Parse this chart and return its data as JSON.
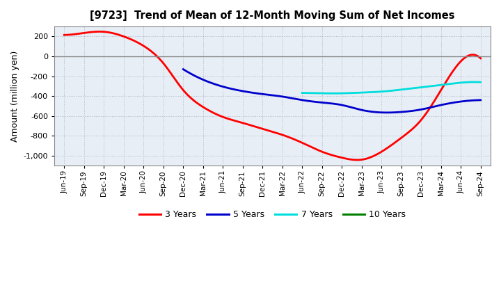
{
  "title": "[9723]  Trend of Mean of 12-Month Moving Sum of Net Incomes",
  "ylabel": "Amount (million yen)",
  "ylim": [
    -1100,
    300
  ],
  "yticks": [
    -1000,
    -800,
    -600,
    -400,
    -200,
    0,
    200
  ],
  "background_color": "#ffffff",
  "plot_bg_color": "#e8eef5",
  "grid_color": "#b0b8c8",
  "zero_line_color": "#888888",
  "x_labels": [
    "Jun-19",
    "Sep-19",
    "Dec-19",
    "Mar-20",
    "Jun-20",
    "Sep-20",
    "Dec-20",
    "Mar-21",
    "Jun-21",
    "Sep-21",
    "Dec-21",
    "Mar-22",
    "Jun-22",
    "Sep-22",
    "Dec-22",
    "Mar-23",
    "Jun-23",
    "Sep-23",
    "Dec-23",
    "Mar-24",
    "Jun-24",
    "Sep-24"
  ],
  "series": {
    "3years": {
      "color": "#ff0000",
      "label": "3 Years",
      "x": [
        0,
        1,
        2,
        3,
        4,
        5,
        6,
        7,
        8,
        9,
        10,
        11,
        12,
        13,
        14,
        15,
        16,
        17,
        18,
        19,
        20,
        21
      ],
      "y": [
        215,
        235,
        247,
        200,
        105,
        -70,
        -340,
        -510,
        -610,
        -670,
        -730,
        -790,
        -870,
        -960,
        -1020,
        -1040,
        -960,
        -820,
        -640,
        -340,
        -50,
        -20
      ]
    },
    "5years": {
      "color": "#0000cc",
      "label": "5 Years",
      "x": [
        6,
        7,
        8,
        9,
        10,
        11,
        12,
        13,
        14,
        15,
        16,
        17,
        18,
        19,
        20,
        21
      ],
      "y": [
        -130,
        -235,
        -305,
        -350,
        -380,
        -405,
        -440,
        -465,
        -490,
        -540,
        -565,
        -560,
        -535,
        -490,
        -455,
        -440
      ]
    },
    "7years": {
      "color": "#00dddd",
      "label": "7 Years",
      "x": [
        12,
        13,
        14,
        15,
        16,
        17,
        18,
        19,
        20,
        21
      ],
      "y": [
        -368,
        -372,
        -372,
        -365,
        -355,
        -335,
        -312,
        -288,
        -265,
        -260
      ]
    },
    "10years": {
      "color": "#008000",
      "label": "10 Years",
      "x": [],
      "y": []
    }
  },
  "legend_labels": [
    "3 Years",
    "5 Years",
    "7 Years",
    "10 Years"
  ],
  "legend_colors": [
    "#ff0000",
    "#0000cc",
    "#00dddd",
    "#008000"
  ]
}
